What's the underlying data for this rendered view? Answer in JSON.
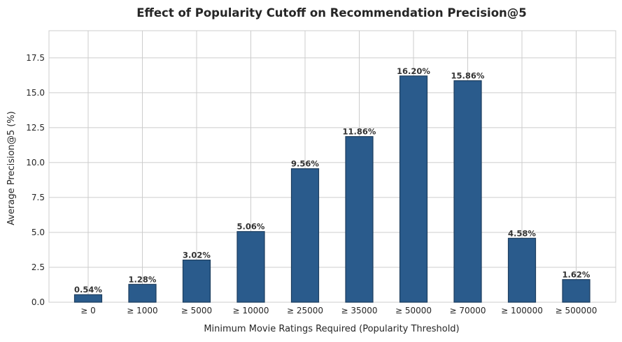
{
  "chart_data": {
    "type": "bar",
    "title": "Effect of Popularity Cutoff on Recommendation Precision@5",
    "xlabel": "Minimum Movie Ratings Required (Popularity Threshold)",
    "ylabel": "Average Precision@5 (%)",
    "categories": [
      "≥ 0",
      "≥ 1000",
      "≥ 5000",
      "≥ 10000",
      "≥ 25000",
      "≥ 35000",
      "≥ 50000",
      "≥ 70000",
      "≥ 100000",
      "≥ 500000"
    ],
    "values": [
      0.54,
      1.28,
      3.02,
      5.06,
      9.56,
      11.86,
      16.2,
      15.86,
      4.58,
      1.62
    ],
    "data_labels": [
      "0.54%",
      "1.28%",
      "3.02%",
      "5.06%",
      "9.56%",
      "11.86%",
      "16.20%",
      "15.86%",
      "4.58%",
      "1.62%"
    ],
    "yticks": [
      0.0,
      2.5,
      5.0,
      7.5,
      10.0,
      12.5,
      15.0,
      17.5
    ],
    "ytick_labels": [
      "0.0",
      "2.5",
      "5.0",
      "7.5",
      "10.0",
      "12.5",
      "15.0",
      "17.5"
    ],
    "ylim": [
      0,
      19.44
    ],
    "grid": true,
    "bar_color": "#2a5b8c",
    "bar_edge_color": "#1c3d5e"
  }
}
